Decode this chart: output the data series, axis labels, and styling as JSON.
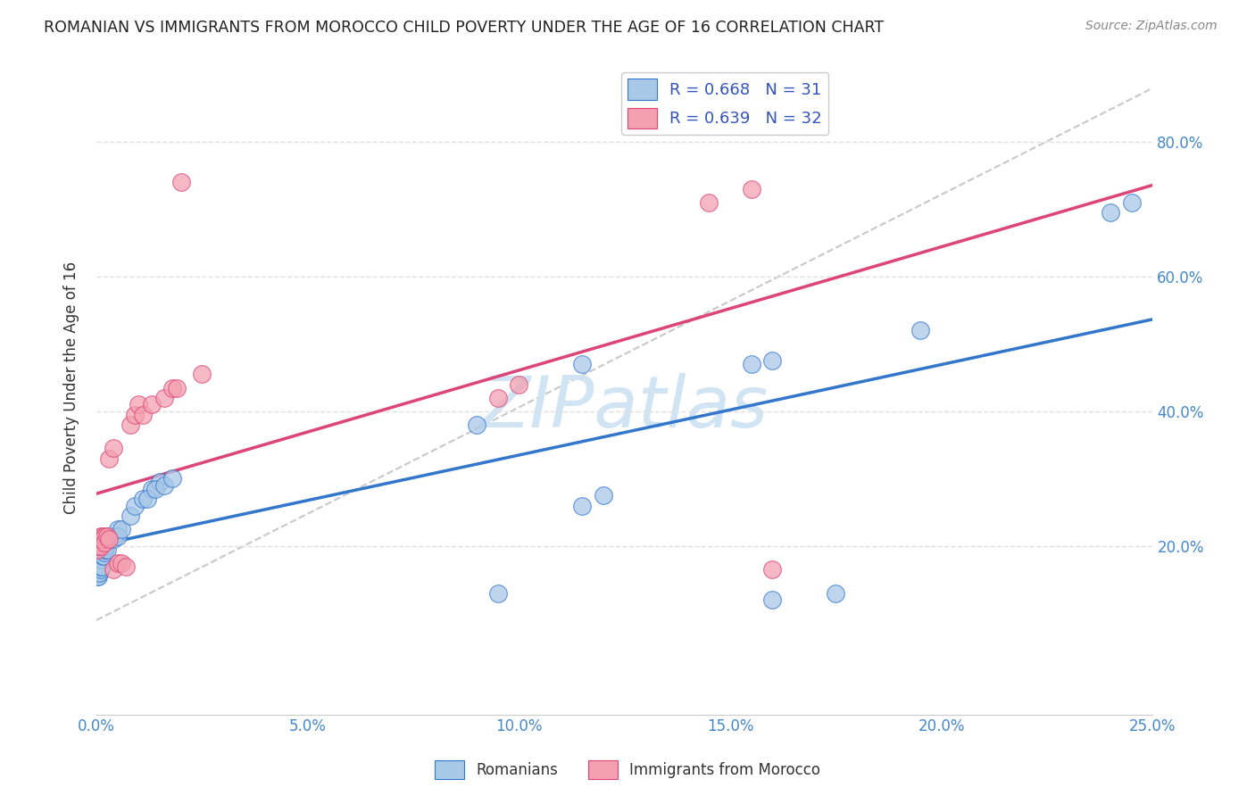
{
  "title": "ROMANIAN VS IMMIGRANTS FROM MOROCCO CHILD POVERTY UNDER THE AGE OF 16 CORRELATION CHART",
  "source": "Source: ZipAtlas.com",
  "ylabel": "Child Poverty Under the Age of 16",
  "xlim": [
    0.0,
    0.25
  ],
  "ylim": [
    -0.05,
    0.92
  ],
  "legend_r_blue": "0.668",
  "legend_n_blue": "31",
  "legend_r_pink": "0.639",
  "legend_n_pink": "32",
  "blue_color": "#a8c8e8",
  "pink_color": "#f4a0b0",
  "line_blue": "#3377cc",
  "line_pink": "#dd4477",
  "dash_color": "#bbbbbb",
  "watermark": "ZIPatlas",
  "watermark_color": "#d0e4f4",
  "blue_x": [
    0.0003,
    0.0005,
    0.0007,
    0.001,
    0.001,
    0.0012,
    0.0013,
    0.0015,
    0.0017,
    0.002,
    0.002,
    0.0022,
    0.0025,
    0.003,
    0.003,
    0.004,
    0.004,
    0.005,
    0.005,
    0.006,
    0.008,
    0.009,
    0.011,
    0.013,
    0.015,
    0.012,
    0.014,
    0.016,
    0.018,
    0.095,
    0.16,
    0.175,
    0.115,
    0.12,
    0.24,
    0.245,
    0.195,
    0.09,
    0.115,
    0.155,
    0.16
  ],
  "blue_y": [
    0.155,
    0.155,
    0.16,
    0.165,
    0.17,
    0.18,
    0.17,
    0.185,
    0.185,
    0.19,
    0.195,
    0.2,
    0.195,
    0.21,
    0.215,
    0.215,
    0.21,
    0.225,
    0.215,
    0.225,
    0.245,
    0.26,
    0.27,
    0.285,
    0.295,
    0.27,
    0.285,
    0.29,
    0.3,
    0.13,
    0.12,
    0.13,
    0.26,
    0.275,
    0.695,
    0.71,
    0.52,
    0.38,
    0.47,
    0.47,
    0.475
  ],
  "pink_x": [
    0.0003,
    0.0005,
    0.0007,
    0.001,
    0.001,
    0.001,
    0.0012,
    0.0013,
    0.0015,
    0.002,
    0.002,
    0.0025,
    0.003,
    0.003,
    0.004,
    0.004,
    0.005,
    0.006,
    0.007,
    0.008,
    0.009,
    0.01,
    0.011,
    0.013,
    0.016,
    0.018,
    0.019,
    0.02,
    0.025,
    0.095,
    0.1,
    0.145,
    0.155,
    0.16
  ],
  "pink_y": [
    0.195,
    0.2,
    0.205,
    0.21,
    0.215,
    0.2,
    0.215,
    0.21,
    0.21,
    0.215,
    0.205,
    0.215,
    0.21,
    0.33,
    0.345,
    0.165,
    0.175,
    0.175,
    0.17,
    0.38,
    0.395,
    0.41,
    0.395,
    0.41,
    0.42,
    0.435,
    0.435,
    0.74,
    0.455,
    0.42,
    0.44,
    0.71,
    0.73,
    0.165
  ],
  "background_color": "#ffffff",
  "grid_color": "#e0e0e0",
  "yticks": [
    0.2,
    0.4,
    0.6,
    0.8
  ],
  "xticks": [
    0.0,
    0.05,
    0.1,
    0.15,
    0.2,
    0.25
  ]
}
